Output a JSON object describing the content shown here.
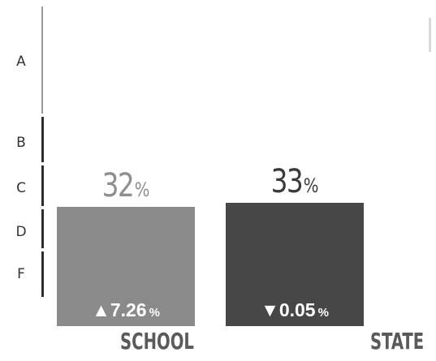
{
  "chart_data": {
    "type": "bar",
    "y_categories": [
      "A",
      "B",
      "C",
      "D",
      "F"
    ],
    "categories": [
      "SCHOOL",
      "STATE"
    ],
    "series": [
      {
        "values": [
          32,
          33
        ],
        "value_labels": [
          "32",
          "33"
        ],
        "unit": "%",
        "changes": [
          {
            "direction": "up",
            "symbol": "▲",
            "value": 7.26,
            "text": "7.26",
            "unit": "%"
          },
          {
            "direction": "down",
            "symbol": "▼",
            "value": 0.05,
            "text": "0.05",
            "unit": "%"
          }
        ]
      }
    ],
    "colors": {
      "SCHOOL": "#8a8a8a",
      "STATE": "#474747",
      "school_value_text": "#8e8e8e",
      "state_value_text": "#3a3a3a",
      "label_text": "#5a5a5a"
    },
    "grid": false,
    "legend": "none"
  }
}
